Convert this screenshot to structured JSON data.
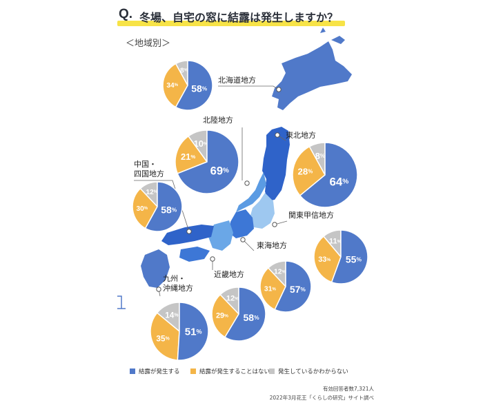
{
  "title": {
    "q": "Q.",
    "text": "冬場、自宅の窓に結露は発生しますか？"
  },
  "subtitle": "＜地域別＞",
  "colors": {
    "yes": "#5079c9",
    "no": "#f4b548",
    "unknown": "#c5c5c5",
    "highlight": "#f7e347"
  },
  "chart_data": {
    "type": "pie",
    "categories": [
      "結露が発生する",
      "結露が発生することはない",
      "発生しているかわからない"
    ],
    "regions": [
      {
        "name": "北海道地方",
        "values": [
          58,
          34,
          8
        ]
      },
      {
        "name": "北陸地方",
        "values": [
          69,
          21,
          10
        ]
      },
      {
        "name": "東北地方",
        "values": [
          64,
          28,
          8
        ]
      },
      {
        "name": "中国・\n四国地方",
        "values": [
          58,
          30,
          12
        ]
      },
      {
        "name": "関東甲信地方",
        "values": [
          55,
          33,
          11
        ]
      },
      {
        "name": "東海地方",
        "values": [
          57,
          31,
          12
        ]
      },
      {
        "name": "近畿地方",
        "values": [
          58,
          29,
          12
        ]
      },
      {
        "name": "九州・\n沖縄地方",
        "values": [
          51,
          35,
          14
        ]
      }
    ],
    "legend": [
      "結露が発生する",
      "結露が発生することはない",
      "発生しているかわからない"
    ]
  },
  "footer": {
    "line1": "有効回答者数7,321人",
    "line2": "2022年3月花王「くらしの研究」サイト調べ"
  }
}
